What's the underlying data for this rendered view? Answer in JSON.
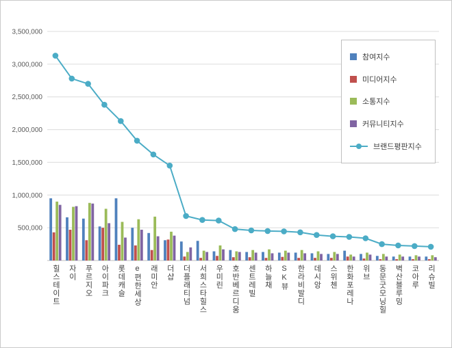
{
  "chart_data": {
    "type": "bar",
    "title": "",
    "grid": true,
    "legend_position": "right-top-overlay",
    "ylim": [
      0,
      3500000
    ],
    "ytick_step": 500000,
    "ytick_labels": [
      "3,500,000",
      "3,000,000",
      "2,500,000",
      "2,000,000",
      "1,500,000",
      "1,000,000",
      "500,000"
    ],
    "categories": [
      "힐스테이트",
      "자이",
      "푸르지오",
      "아이파크",
      "롯데캐슬",
      "e편한세상",
      "래미안",
      "더샵",
      "더플래티넘",
      "서희스타힐스",
      "우미린",
      "호반베르디움",
      "센트레빌",
      "하늘채",
      "SK뷰",
      "한라비발디",
      "데시앙",
      "스위첸",
      "한화포레나",
      "위브",
      "동문굿모닝힐",
      "벽산블루밍",
      "코아루",
      "리슈빌"
    ],
    "series": [
      {
        "name": "참여지수",
        "color": "#4F81BD",
        "values": [
          950000,
          660000,
          640000,
          520000,
          950000,
          500000,
          420000,
          310000,
          290000,
          300000,
          140000,
          160000,
          130000,
          130000,
          120000,
          120000,
          110000,
          100000,
          150000,
          100000,
          70000,
          60000,
          60000,
          60000
        ]
      },
      {
        "name": "미디어지수",
        "color": "#C0504D",
        "values": [
          430000,
          470000,
          310000,
          500000,
          240000,
          230000,
          160000,
          320000,
          60000,
          40000,
          70000,
          50000,
          50000,
          40000,
          55000,
          40000,
          40000,
          40000,
          60000,
          30000,
          20000,
          20000,
          20000,
          20000
        ]
      },
      {
        "name": "소통지수",
        "color": "#9BBB59",
        "values": [
          900000,
          820000,
          880000,
          790000,
          590000,
          630000,
          670000,
          440000,
          130000,
          150000,
          230000,
          140000,
          160000,
          170000,
          150000,
          160000,
          140000,
          130000,
          90000,
          120000,
          100000,
          90000,
          80000,
          80000
        ]
      },
      {
        "name": "커뮤니티지수",
        "color": "#8064A2",
        "values": [
          850000,
          830000,
          870000,
          570000,
          350000,
          470000,
          370000,
          380000,
          200000,
          130000,
          170000,
          130000,
          120000,
          110000,
          120000,
          110000,
          100000,
          100000,
          60000,
          90000,
          60000,
          60000,
          60000,
          50000
        ]
      }
    ],
    "line_series": {
      "name": "브랜드평판지수",
      "color": "#4BACC6",
      "values": [
        3130000,
        2780000,
        2700000,
        2380000,
        2130000,
        1830000,
        1620000,
        1450000,
        680000,
        620000,
        610000,
        480000,
        460000,
        450000,
        445000,
        430000,
        390000,
        370000,
        360000,
        340000,
        250000,
        230000,
        220000,
        210000
      ]
    }
  }
}
